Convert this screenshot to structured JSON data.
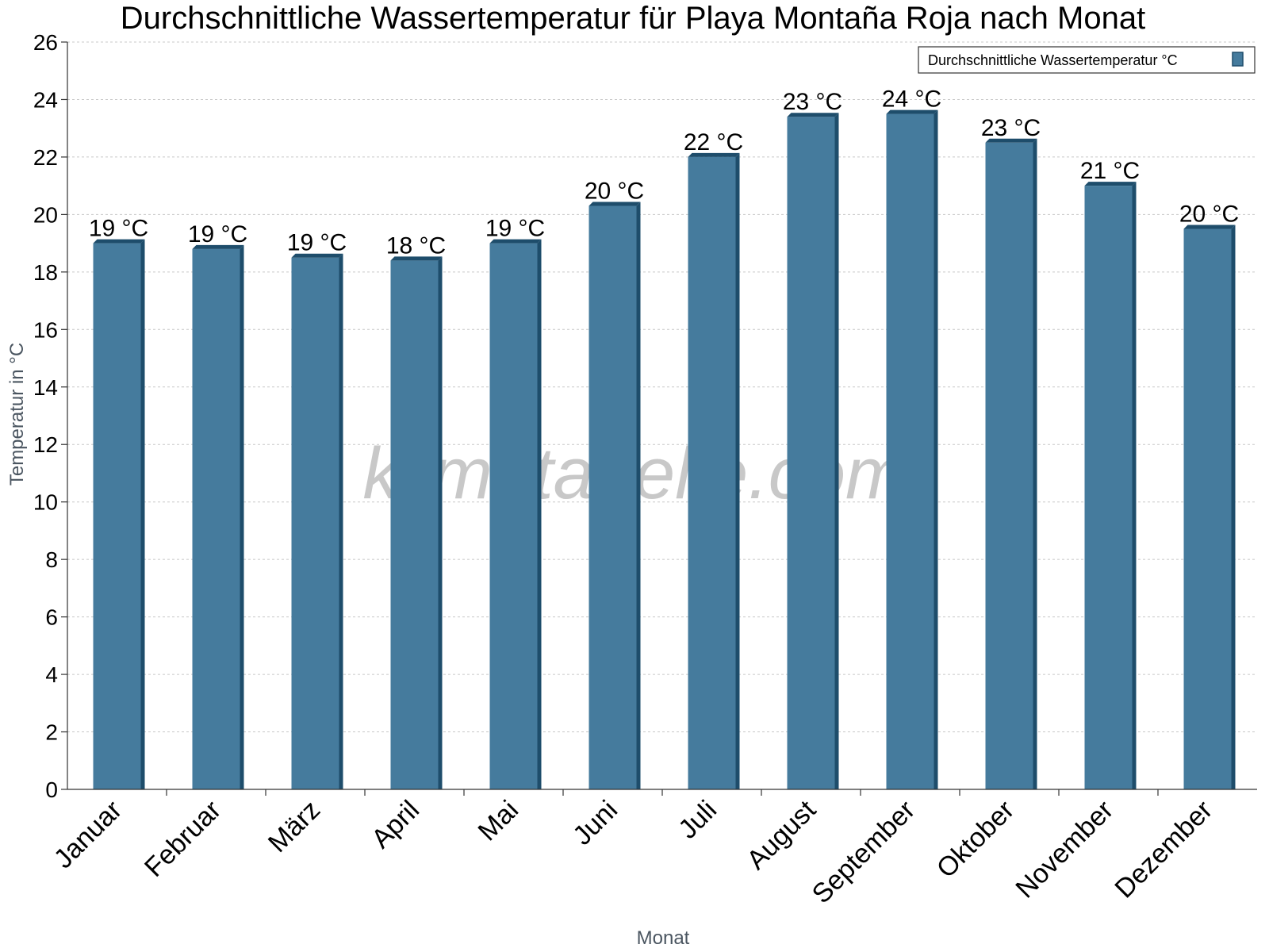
{
  "chart_data": {
    "type": "bar",
    "title": "Durchschnittliche Wassertemperatur für Playa Montaña Roja nach Monat",
    "xlabel": "Monat",
    "ylabel": "Temperatur in °C",
    "categories": [
      "Januar",
      "Februar",
      "März",
      "April",
      "Mai",
      "Juni",
      "Juli",
      "August",
      "September",
      "Oktober",
      "November",
      "Dezember"
    ],
    "series": [
      {
        "name": "Durchschnittliche Wassertemperatur °C",
        "values": [
          19.0,
          18.8,
          18.5,
          18.4,
          19.0,
          20.3,
          22.0,
          23.4,
          23.5,
          22.5,
          21.0,
          19.5
        ],
        "labels": [
          "19 °C",
          "19 °C",
          "19 °C",
          "18 °C",
          "19 °C",
          "20 °C",
          "22 °C",
          "23 °C",
          "24 °C",
          "23 °C",
          "21 °C",
          "20 °C"
        ],
        "color": "#457b9d",
        "side_color": "#1e4d6b"
      }
    ],
    "ylim": [
      0,
      26
    ],
    "yticks": [
      0,
      2,
      4,
      6,
      8,
      10,
      12,
      14,
      16,
      18,
      20,
      22,
      24,
      26
    ],
    "grid": true,
    "legend_position": "top-right",
    "watermark": "klimatabelle.com"
  }
}
